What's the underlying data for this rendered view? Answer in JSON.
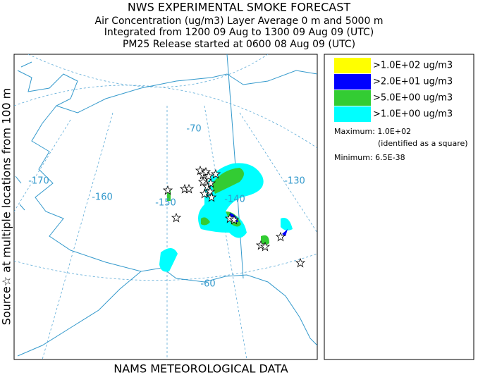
{
  "header": {
    "title": "NWS EXPERIMENTAL SMOKE FORECAST",
    "lines": [
      "Air Concentration (ug/m3) Layer Average    0 m and  5000 m",
      "Integrated from 1200 09 Aug to 1300 09 Aug 09 (UTC)",
      "PM25 Release started at 0600 08 Aug 09 (UTC)"
    ]
  },
  "side_label": "Source☆ at multiple locations   from  100 m",
  "footer": "NAMS METEOROLOGICAL DATA",
  "map": {
    "labels": [
      "-170",
      "-160",
      "-150",
      "-140",
      "-130",
      "-70",
      "-60"
    ]
  },
  "legend": {
    "items": [
      {
        "label": ">1.0E+02 ug/m3",
        "color": "#ffff00"
      },
      {
        "label": ">2.0E+01 ug/m3",
        "color": "#0000ff"
      },
      {
        "label": ">5.0E+00 ug/m3",
        "color": "#33cc33"
      },
      {
        "label": ">1.0E+00 ug/m3",
        "color": "#00ffff"
      }
    ],
    "maximum": "Maximum: 1.0E+02",
    "max_note": "(identified as a square)",
    "minimum": "Minimum: 6.5E-38"
  }
}
